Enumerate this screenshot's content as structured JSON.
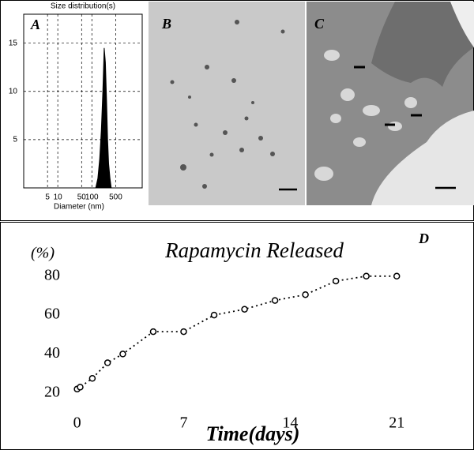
{
  "chart_data": [
    {
      "type": "area",
      "panel": "A",
      "title": "Size distribution(s)",
      "x_label": "Diameter (nm)",
      "x": [
        130,
        150,
        170,
        190,
        210,
        230,
        250,
        270,
        290,
        310,
        340,
        370
      ],
      "values": [
        0,
        1,
        3,
        6,
        10,
        14.5,
        13,
        9,
        5,
        2.5,
        1,
        0
      ],
      "color": "#000000",
      "xlog": true,
      "xlim": [
        1,
        3000
      ],
      "ylim": [
        0,
        18
      ],
      "xticks": [
        5,
        10,
        50,
        100,
        500
      ],
      "yticks": [
        5,
        10,
        15
      ],
      "grid": true
    },
    {
      "type": "line",
      "panel": "D",
      "title": "Rapamycin Released",
      "y_label": "(%)",
      "x_label": "Time(days)",
      "x": [
        0,
        0.2,
        1,
        2,
        3,
        5,
        7,
        9,
        11,
        13,
        15,
        17,
        19,
        21
      ],
      "values": [
        22,
        23,
        27.5,
        35.5,
        40,
        51.5,
        51.5,
        60,
        63,
        67.5,
        70.5,
        77.5,
        80,
        80
      ],
      "color": "#000000",
      "xlim": [
        -0.5,
        24
      ],
      "ylim": [
        13,
        86
      ],
      "xticks": [
        0,
        7,
        14,
        21
      ],
      "yticks": [
        20,
        40,
        60,
        80
      ],
      "grid": false
    }
  ],
  "images": [
    {
      "label": "B"
    },
    {
      "label": "C"
    }
  ]
}
